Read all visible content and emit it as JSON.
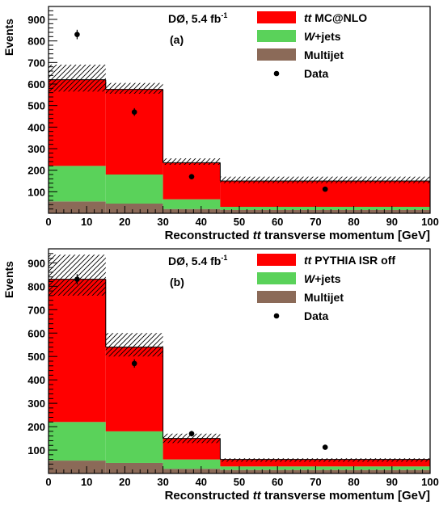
{
  "colors": {
    "ttbar": "#ff0000",
    "wjets": "#5ad25a",
    "multijet": "#8b6a58",
    "data": "#000000",
    "uncertainty_hatch": "#000000"
  },
  "chart_data": [
    {
      "type": "bar",
      "panel_label": "(a)",
      "experiment": "DØ, 5.4 fb",
      "experiment_sup": "-1",
      "xlabel_prefix": "Reconstructed ",
      "xlabel_mid": "tt",
      "xlabel_suffix": " transverse momentum [GeV]",
      "ylabel": "Events",
      "xlim": [
        0,
        100
      ],
      "ylim": [
        0,
        960
      ],
      "xticks": [
        0,
        10,
        20,
        30,
        40,
        50,
        60,
        70,
        80,
        90,
        100
      ],
      "yticks": [
        100,
        200,
        300,
        400,
        500,
        600,
        700,
        800,
        900
      ],
      "bin_edges": [
        0,
        15,
        30,
        45,
        100
      ],
      "series": [
        {
          "name": "Multijet",
          "key": "multijet",
          "values": [
            55,
            45,
            20,
            15
          ]
        },
        {
          "name": "W+jets",
          "key": "wjets",
          "values": [
            165,
            135,
            45,
            15
          ]
        },
        {
          "name": "tt MC@NLO",
          "key": "ttbar",
          "values": [
            400,
            395,
            170,
            120
          ]
        }
      ],
      "uncertainty_band": {
        "low": [
          565,
          555,
          225,
          140
        ],
        "high": [
          690,
          605,
          255,
          170
        ]
      },
      "data_points": {
        "x": [
          7.5,
          22.5,
          37.5,
          72.5
        ],
        "y": [
          830,
          470,
          170,
          112
        ],
        "err": [
          22,
          18,
          12,
          8
        ]
      },
      "legend": {
        "placement": "top-right",
        "entries": [
          {
            "key": "ttbar",
            "italic": "tt",
            "text": " MC@NLO",
            "style": "box"
          },
          {
            "key": "wjets",
            "italic": "W",
            "text": "+jets",
            "style": "box"
          },
          {
            "key": "multijet",
            "italic": "",
            "text": "Multijet",
            "style": "box"
          },
          {
            "key": "data",
            "italic": "",
            "text": "Data",
            "style": "marker"
          }
        ]
      }
    },
    {
      "type": "bar",
      "panel_label": "(b)",
      "experiment": "DØ, 5.4 fb",
      "experiment_sup": "-1",
      "xlabel_prefix": "Reconstructed ",
      "xlabel_mid": "tt",
      "xlabel_suffix": " transverse momentum [GeV]",
      "ylabel": "Events",
      "xlim": [
        0,
        100
      ],
      "ylim": [
        0,
        960
      ],
      "xticks": [
        0,
        10,
        20,
        30,
        40,
        50,
        60,
        70,
        80,
        90,
        100
      ],
      "yticks": [
        100,
        200,
        300,
        400,
        500,
        600,
        700,
        800,
        900
      ],
      "bin_edges": [
        0,
        15,
        30,
        45,
        100
      ],
      "series": [
        {
          "name": "Multijet",
          "key": "multijet",
          "values": [
            55,
            45,
            20,
            15
          ]
        },
        {
          "name": "W+jets",
          "key": "wjets",
          "values": [
            165,
            135,
            40,
            15
          ]
        },
        {
          "name": "tt PYTHIA ISR off",
          "key": "ttbar",
          "values": [
            610,
            360,
            90,
            30
          ]
        }
      ],
      "uncertainty_band": {
        "low": [
          760,
          500,
          130,
          50
        ],
        "high": [
          935,
          600,
          170,
          65
        ]
      },
      "data_points": {
        "x": [
          7.5,
          22.5,
          37.5,
          72.5
        ],
        "y": [
          830,
          470,
          170,
          112
        ],
        "err": [
          22,
          18,
          12,
          8
        ]
      },
      "legend": {
        "placement": "top-right",
        "entries": [
          {
            "key": "ttbar",
            "italic": "tt",
            "text": " PYTHIA ISR off",
            "style": "box"
          },
          {
            "key": "wjets",
            "italic": "W",
            "text": "+jets",
            "style": "box"
          },
          {
            "key": "multijet",
            "italic": "",
            "text": "Multijet",
            "style": "box"
          },
          {
            "key": "data",
            "italic": "",
            "text": "Data",
            "style": "marker"
          }
        ]
      }
    }
  ]
}
